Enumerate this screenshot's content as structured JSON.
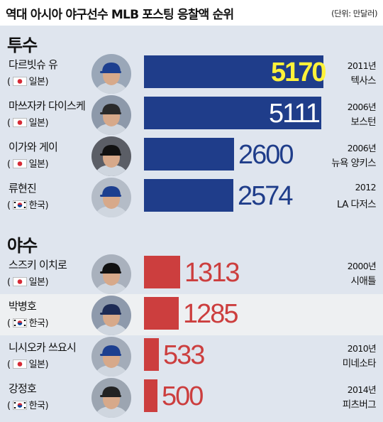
{
  "title": "역대 아시아 야구선수 MLB 포스팅 응찰액 순위",
  "unit": "(단위: 만달러)",
  "sections": {
    "pitchers": "투수",
    "fielders": "야수"
  },
  "colors": {
    "pitcher_bar": "#1f3d8a",
    "fielder_bar": "#cc3e3e",
    "highlight_value": "#fff23a",
    "pitcher_value_dark": "#1f3d8a",
    "fielder_value": "#cc3e3e"
  },
  "chart_data": {
    "type": "bar",
    "title": "역대 아시아 야구선수 MLB 포스팅 응찰액 순위",
    "unit": "(단위: 만달러)",
    "groups": [
      {
        "name": "투수",
        "players": [
          {
            "name": "다르빗슈 유",
            "country": "일본",
            "value": 5170,
            "year": "2011년",
            "team": "텍사스"
          },
          {
            "name": "마쓰자카 다이스케",
            "country": "일본",
            "value": 5111,
            "year": "2006년",
            "team": "보스턴"
          },
          {
            "name": "이가와 게이",
            "country": "일본",
            "value": 2600,
            "year": "2006년",
            "team": "뉴욕 양키스"
          },
          {
            "name": "류현진",
            "country": "한국",
            "value": 2574,
            "year": "2012",
            "team": "LA 다저스"
          }
        ]
      },
      {
        "name": "야수",
        "players": [
          {
            "name": "스즈키 이치로",
            "country": "일본",
            "value": 1313,
            "year": "2000년",
            "team": "시애틀"
          },
          {
            "name": "박병호",
            "country": "한국",
            "value": 1285,
            "year": "",
            "team": "",
            "highlight": true
          },
          {
            "name": "니시오카 쓰요시",
            "country": "일본",
            "value": 533,
            "year": "2010년",
            "team": "미네소타"
          },
          {
            "name": "강정호",
            "country": "한국",
            "value": 500,
            "year": "2014년",
            "team": "피츠버그"
          }
        ]
      }
    ]
  }
}
